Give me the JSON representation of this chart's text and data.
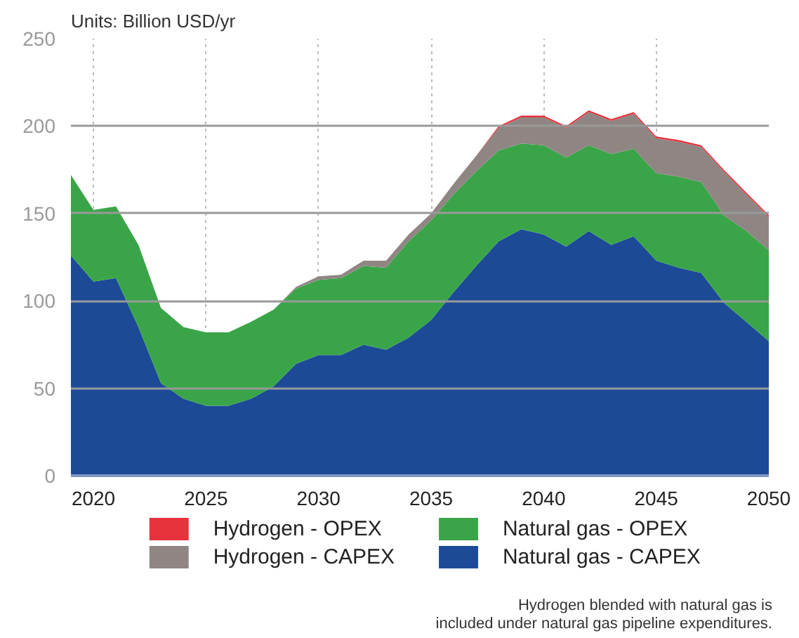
{
  "chart_data": {
    "type": "area",
    "stacked": true,
    "title": "Units: Billion USD/yr",
    "x": [
      2019,
      2020,
      2021,
      2022,
      2023,
      2024,
      2025,
      2026,
      2027,
      2028,
      2029,
      2030,
      2031,
      2032,
      2033,
      2034,
      2035,
      2036,
      2037,
      2038,
      2039,
      2040,
      2041,
      2042,
      2043,
      2044,
      2045,
      2046,
      2047,
      2048,
      2049,
      2050
    ],
    "series": [
      {
        "name": "Natural gas - CAPEX",
        "color": "#1c4a97",
        "values": [
          126,
          111,
          113,
          85,
          53,
          44,
          40,
          40,
          44,
          51,
          64,
          69,
          69,
          75,
          72,
          79,
          89,
          105,
          120,
          134,
          141,
          138,
          131,
          140,
          132,
          137,
          123,
          119,
          116,
          99,
          88,
          77
        ]
      },
      {
        "name": "Natural gas - OPEX",
        "color": "#3aa548",
        "values": [
          46,
          41,
          41,
          47,
          43,
          41,
          42,
          42,
          44,
          44,
          43,
          43,
          44,
          45,
          47,
          55,
          57,
          56,
          54,
          52,
          49,
          51,
          51,
          49,
          52,
          50,
          50,
          52,
          52,
          50,
          52,
          52
        ]
      },
      {
        "name": "Hydrogen - CAPEX",
        "color": "#8f8684",
        "values": [
          0,
          0,
          0,
          0,
          0,
          0,
          0,
          0,
          0,
          0,
          1,
          2,
          2,
          3,
          4,
          4,
          4,
          6,
          9,
          13,
          15,
          16,
          17,
          19,
          19,
          20,
          20,
          20,
          20,
          25,
          21,
          19
        ]
      },
      {
        "name": "Hydrogen - OPEX",
        "color": "#e8323c",
        "values": [
          0,
          0,
          0,
          0,
          0,
          0,
          0,
          0,
          0,
          0,
          0,
          0,
          0,
          0,
          0,
          0,
          0,
          0,
          0,
          1,
          1,
          1,
          1,
          1,
          1,
          1,
          1,
          1,
          1,
          1,
          1,
          1
        ]
      }
    ],
    "xlim": [
      2019,
      2050
    ],
    "xticks": [
      2020,
      2025,
      2030,
      2035,
      2040,
      2045,
      2050
    ],
    "ylim": [
      0,
      250
    ],
    "yticks": [
      0,
      50,
      100,
      150,
      200,
      250
    ],
    "grid": true,
    "legend": "bottom",
    "annotations": [
      "Hydrogen blended with natural gas is\nincluded under natural gas pipeline expenditures."
    ]
  }
}
